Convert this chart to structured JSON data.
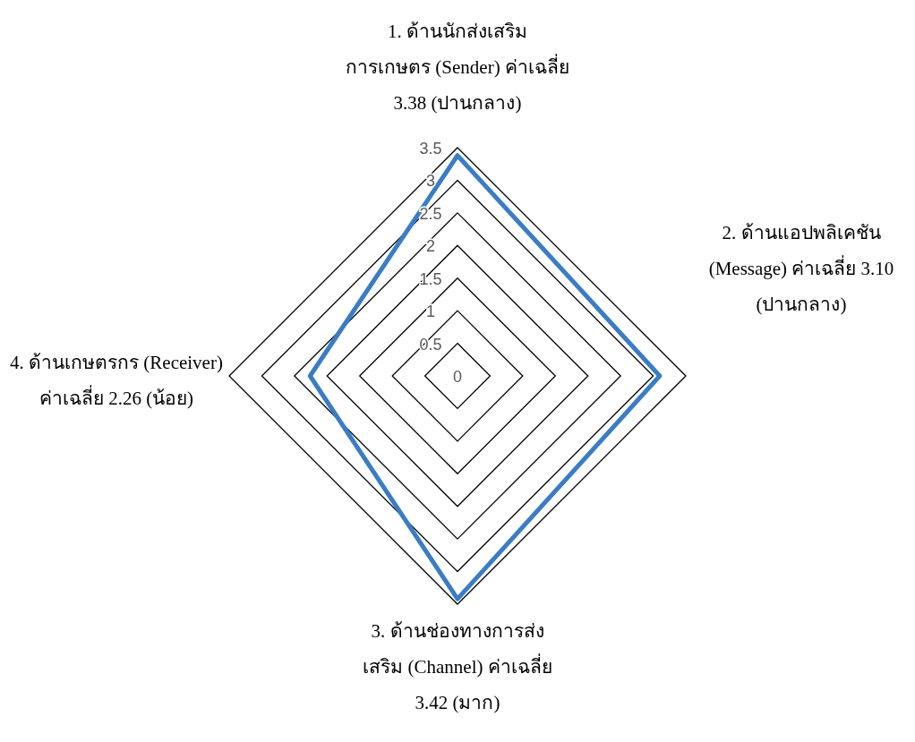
{
  "chart_data": {
    "type": "radar",
    "categories": [
      "1. ด้านนักส่งเสริมการเกษตร (Sender) ค่าเฉลี่ย 3.38 (ปานกลาง)",
      "2. ด้านแอปพลิเคชัน (Message) ค่าเฉลี่ย 3.10 (ปานกลาง)",
      "3. ด้านช่องทางการส่งเสริม (Channel) ค่าเฉลี่ย 3.42 (มาก)",
      "4. ด้านเกษตรกร (Receiver) ค่าเฉลี่ย 2.26 (น้อย)"
    ],
    "series": [
      {
        "color": "#3b7dc4",
        "values": [
          3.38,
          3.1,
          3.42,
          2.26
        ]
      }
    ],
    "ylim": [
      0,
      3.5
    ],
    "yticks": [
      0,
      0.5,
      1,
      1.5,
      2,
      2.5,
      3,
      3.5
    ],
    "grid": true
  }
}
